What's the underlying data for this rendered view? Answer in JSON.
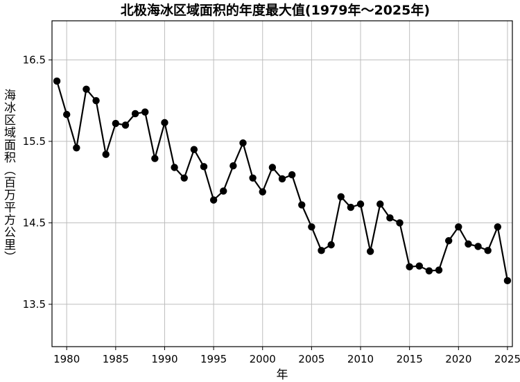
{
  "chart_data": {
    "type": "line",
    "title": "北极海冰区域面积的年度最大值(1979年～2025年)",
    "xlabel": "年",
    "ylabel": "海冰区域面积（百万平方公里）",
    "xlim": [
      1978.5,
      2025.5
    ],
    "ylim": [
      12.98,
      16.98
    ],
    "x_ticks": [
      1980,
      1985,
      1990,
      1995,
      2000,
      2005,
      2010,
      2015,
      2020,
      2025
    ],
    "y_ticks": [
      13.5,
      14.5,
      15.5,
      16.5
    ],
    "x_tick_labels": [
      "1980",
      "1985",
      "1990",
      "1995",
      "2000",
      "2005",
      "2010",
      "2015",
      "2020",
      "2025"
    ],
    "y_tick_labels": [
      "13.5",
      "14.5",
      "15.5",
      "16.5"
    ],
    "grid": true,
    "legend": "none",
    "line_color": "#000000",
    "marker": "circle",
    "series": [
      {
        "x": [
          1979,
          1980,
          1981,
          1982,
          1983,
          1984,
          1985,
          1986,
          1987,
          1988,
          1989,
          1990,
          1991,
          1992,
          1993,
          1994,
          1995,
          1996,
          1997,
          1998,
          1999,
          2000,
          2001,
          2002,
          2003,
          2004,
          2005,
          2006,
          2007,
          2008,
          2009,
          2010,
          2011,
          2012,
          2013,
          2014,
          2015,
          2016,
          2017,
          2018,
          2019,
          2020,
          2021,
          2022,
          2023,
          2024,
          2025
        ],
        "values": [
          16.24,
          15.83,
          15.42,
          16.14,
          16.0,
          15.34,
          15.72,
          15.7,
          15.84,
          15.86,
          15.29,
          15.73,
          15.18,
          15.05,
          15.4,
          15.19,
          14.78,
          14.89,
          15.2,
          15.48,
          15.05,
          14.88,
          15.18,
          15.04,
          15.09,
          14.72,
          14.45,
          14.16,
          14.23,
          14.82,
          14.69,
          14.73,
          14.15,
          14.73,
          14.56,
          14.5,
          13.96,
          13.97,
          13.91,
          13.92,
          14.28,
          14.45,
          14.24,
          14.21,
          14.16,
          14.45,
          13.79
        ]
      }
    ]
  }
}
